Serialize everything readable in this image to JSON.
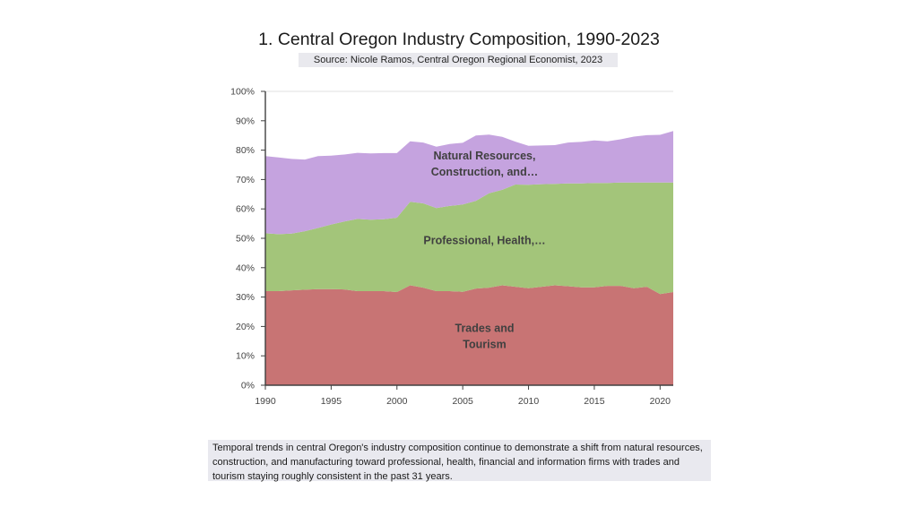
{
  "title": "1. Central Oregon Industry Composition, 1990-2023",
  "subtitle": "Source: Nicole Ramos, Central Oregon Regional Economist, 2023",
  "caption": "Temporal trends in central Oregon's industry composition continue to demonstrate a shift from natural resources, construction, and manufacturing toward professional, health, financial and information firms with trades and tourism staying roughly consistent in the past 31 years.",
  "chart_data": {
    "type": "area",
    "stacked": true,
    "title": "1. Central Oregon Industry Composition, 1990-2023",
    "xlabel": "",
    "ylabel": "",
    "xlim": [
      1990,
      2021
    ],
    "ylim": [
      0,
      100
    ],
    "x_ticks": [
      1990,
      1995,
      2000,
      2005,
      2010,
      2015,
      2020
    ],
    "x_tick_labels": [
      "1990",
      "1995",
      "2000",
      "2005",
      "2010",
      "2015",
      "2020"
    ],
    "y_ticks": [
      0,
      10,
      20,
      30,
      40,
      50,
      60,
      70,
      80,
      90,
      100
    ],
    "y_tick_labels": [
      "0%",
      "10%",
      "20%",
      "30%",
      "40%",
      "50%",
      "60%",
      "70%",
      "80%",
      "90%",
      "100%"
    ],
    "x": [
      1990,
      1991,
      1992,
      1993,
      1994,
      1995,
      1996,
      1997,
      1998,
      1999,
      2000,
      2001,
      2002,
      2003,
      2004,
      2005,
      2006,
      2007,
      2008,
      2009,
      2010,
      2011,
      2012,
      2013,
      2014,
      2015,
      2016,
      2017,
      2018,
      2019,
      2020,
      2021
    ],
    "series": [
      {
        "name": "Trades and Tourism",
        "label_lines": [
          "Trades and",
          "Tourism"
        ],
        "color": "#c87474",
        "values": [
          32.0,
          32.0,
          32.3,
          32.5,
          32.7,
          32.7,
          32.6,
          32.0,
          32.0,
          32.0,
          31.7,
          34.0,
          33.2,
          32.0,
          32.0,
          31.8,
          32.9,
          33.2,
          34.0,
          33.5,
          33.0,
          33.5,
          34.0,
          33.7,
          33.3,
          33.3,
          33.8,
          33.8,
          33.0,
          33.5,
          31.0,
          31.7
        ]
      },
      {
        "name": "Professional, Health,…",
        "label_lines": [
          "Professional, Health,…"
        ],
        "color": "#a3c57a",
        "values": [
          19.7,
          19.4,
          19.3,
          19.9,
          20.8,
          22.0,
          23.1,
          24.6,
          24.3,
          24.5,
          25.3,
          28.4,
          28.7,
          28.3,
          29.0,
          29.7,
          29.8,
          32.1,
          32.5,
          34.8,
          35.2,
          34.9,
          34.5,
          35.0,
          35.4,
          35.5,
          35.0,
          35.2,
          36.0,
          35.5,
          38.0,
          37.3
        ]
      },
      {
        "name": "Natural Resources, Construction, and…",
        "label_lines": [
          "Natural Resources,",
          "Construction, and…"
        ],
        "color": "#c5a3df",
        "values": [
          26.3,
          26.1,
          25.4,
          24.4,
          24.5,
          23.4,
          22.8,
          22.5,
          22.6,
          22.5,
          22.0,
          20.6,
          20.7,
          20.9,
          21.1,
          21.0,
          22.3,
          20.0,
          18.0,
          14.6,
          13.3,
          13.2,
          13.2,
          13.9,
          14.1,
          14.5,
          14.2,
          14.7,
          15.6,
          16.1,
          16.2,
          17.5
        ]
      }
    ]
  }
}
